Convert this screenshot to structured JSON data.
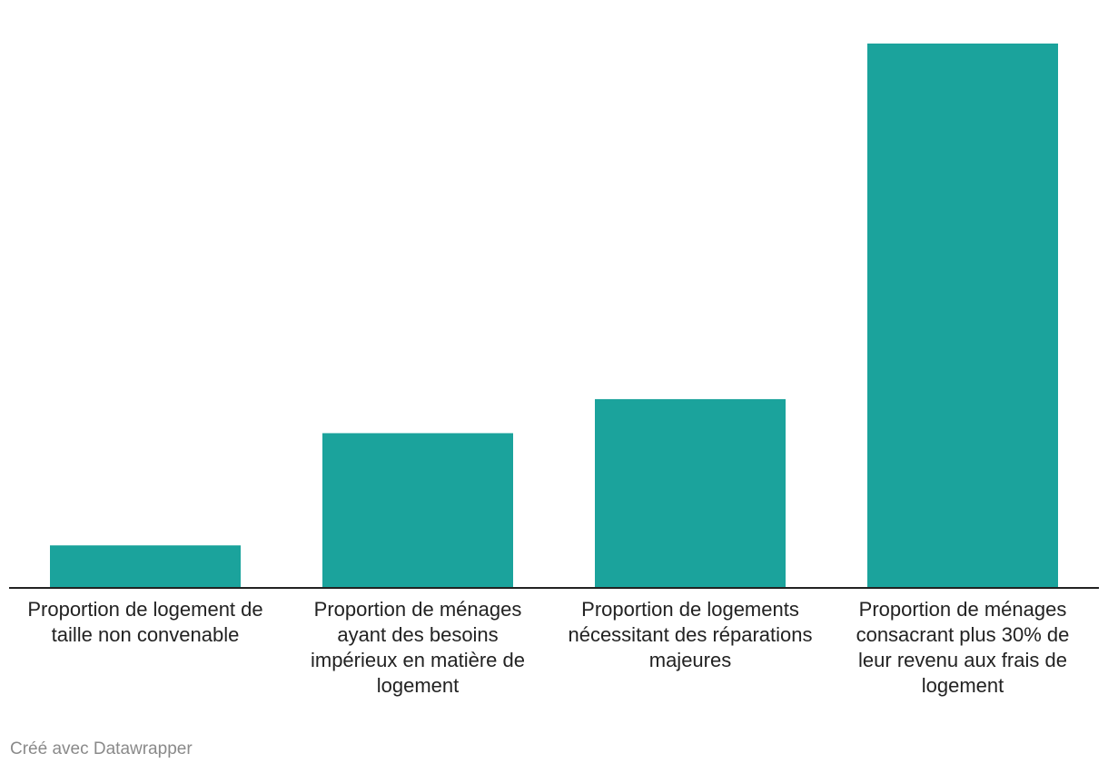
{
  "chart_data": {
    "type": "bar",
    "categories": [
      "Proportion de logement de taille non convenable",
      "Proportion de ménages ayant des besoins impérieux en matière de logement",
      "Proportion de logements nécessitant des réparations majeures",
      "Proportion de ménages consacrant plus 30% de leur revenu aux frais de logement"
    ],
    "values": [
      3.3,
      12.2,
      14.9,
      43.1
    ],
    "ylim": [
      0,
      43.1
    ],
    "grid": false,
    "legend": "none",
    "colors": {
      "bar": "#1ba39c",
      "baseline": "#222222"
    }
  },
  "footer": "Créé avec Datawrapper"
}
